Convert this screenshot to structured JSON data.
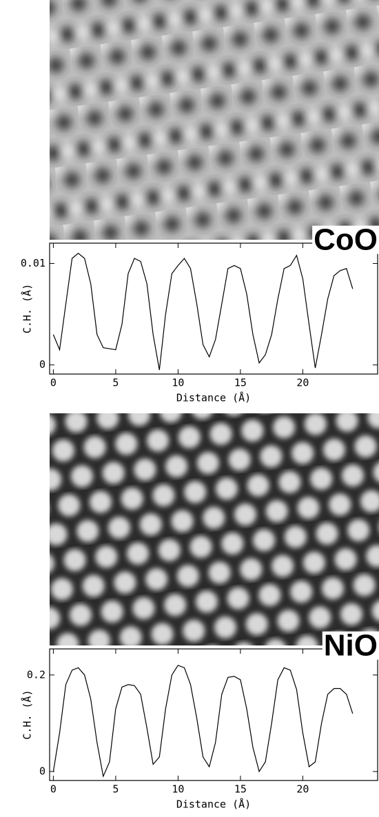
{
  "chart_data": [
    {
      "type": "line",
      "label": "CoO",
      "xlabel": "Distance (Å)",
      "ylabel": "C.H. (Å)",
      "color": "#000000",
      "x": [
        0,
        0.5,
        1,
        1.5,
        2,
        2.5,
        3,
        3.5,
        4,
        4.5,
        5,
        5.5,
        6,
        6.5,
        7,
        7.5,
        8,
        8.5,
        9,
        9.5,
        10,
        10.5,
        11,
        11.5,
        12,
        12.5,
        13,
        13.5,
        14,
        14.5,
        15,
        15.5,
        16,
        16.5,
        17,
        17.5,
        18,
        18.5,
        19,
        19.5,
        20,
        20.5,
        21,
        21.5,
        22,
        22.5,
        23,
        23.5,
        24
      ],
      "values": [
        0.003,
        0.0015,
        0.006,
        0.0105,
        0.011,
        0.0105,
        0.008,
        0.003,
        0.0017,
        0.0016,
        0.0015,
        0.004,
        0.009,
        0.0105,
        0.0102,
        0.008,
        0.003,
        -0.0005,
        0.005,
        0.009,
        0.0098,
        0.0105,
        0.0095,
        0.006,
        0.002,
        0.0008,
        0.0025,
        0.006,
        0.0095,
        0.0098,
        0.0095,
        0.007,
        0.003,
        0.0002,
        0.001,
        0.003,
        0.0065,
        0.0095,
        0.0098,
        0.0108,
        0.0085,
        0.004,
        -0.0003,
        0.003,
        0.0065,
        0.0088,
        0.0093,
        0.0095,
        0.0075
      ],
      "xlim": [
        -0.3,
        26
      ],
      "ylim": [
        -0.0009,
        0.012
      ],
      "xticks": [
        0,
        5,
        10,
        15,
        20
      ],
      "yticks": [
        0,
        0.01
      ]
    },
    {
      "type": "line",
      "label": "NiO",
      "xlabel": "Distance (Å)",
      "ylabel": "C.H. (Å)",
      "color": "#000000",
      "x": [
        0,
        0.5,
        1,
        1.5,
        2,
        2.5,
        3,
        3.5,
        4,
        4.5,
        5,
        5.5,
        6,
        6.5,
        7,
        7.5,
        8,
        8.5,
        9,
        9.5,
        10,
        10.5,
        11,
        11.5,
        12,
        12.5,
        13,
        13.5,
        14,
        14.5,
        15,
        15.5,
        16,
        16.5,
        17,
        17.5,
        18,
        18.5,
        19,
        19.5,
        20,
        20.5,
        21,
        21.5,
        22,
        22.5,
        23,
        23.5,
        24
      ],
      "values": [
        0.0,
        0.08,
        0.18,
        0.21,
        0.215,
        0.2,
        0.15,
        0.06,
        -0.01,
        0.02,
        0.13,
        0.175,
        0.18,
        0.178,
        0.16,
        0.09,
        0.015,
        0.03,
        0.13,
        0.2,
        0.22,
        0.215,
        0.18,
        0.11,
        0.03,
        0.01,
        0.06,
        0.16,
        0.195,
        0.197,
        0.19,
        0.13,
        0.05,
        0.0,
        0.02,
        0.1,
        0.19,
        0.215,
        0.21,
        0.17,
        0.08,
        0.01,
        0.02,
        0.1,
        0.16,
        0.172,
        0.172,
        0.16,
        0.12
      ],
      "xlim": [
        -0.3,
        26
      ],
      "ylim": [
        -0.0186,
        0.254
      ],
      "xticks": [
        0,
        5,
        10,
        15,
        20
      ],
      "yticks": [
        0,
        0.2
      ]
    }
  ]
}
